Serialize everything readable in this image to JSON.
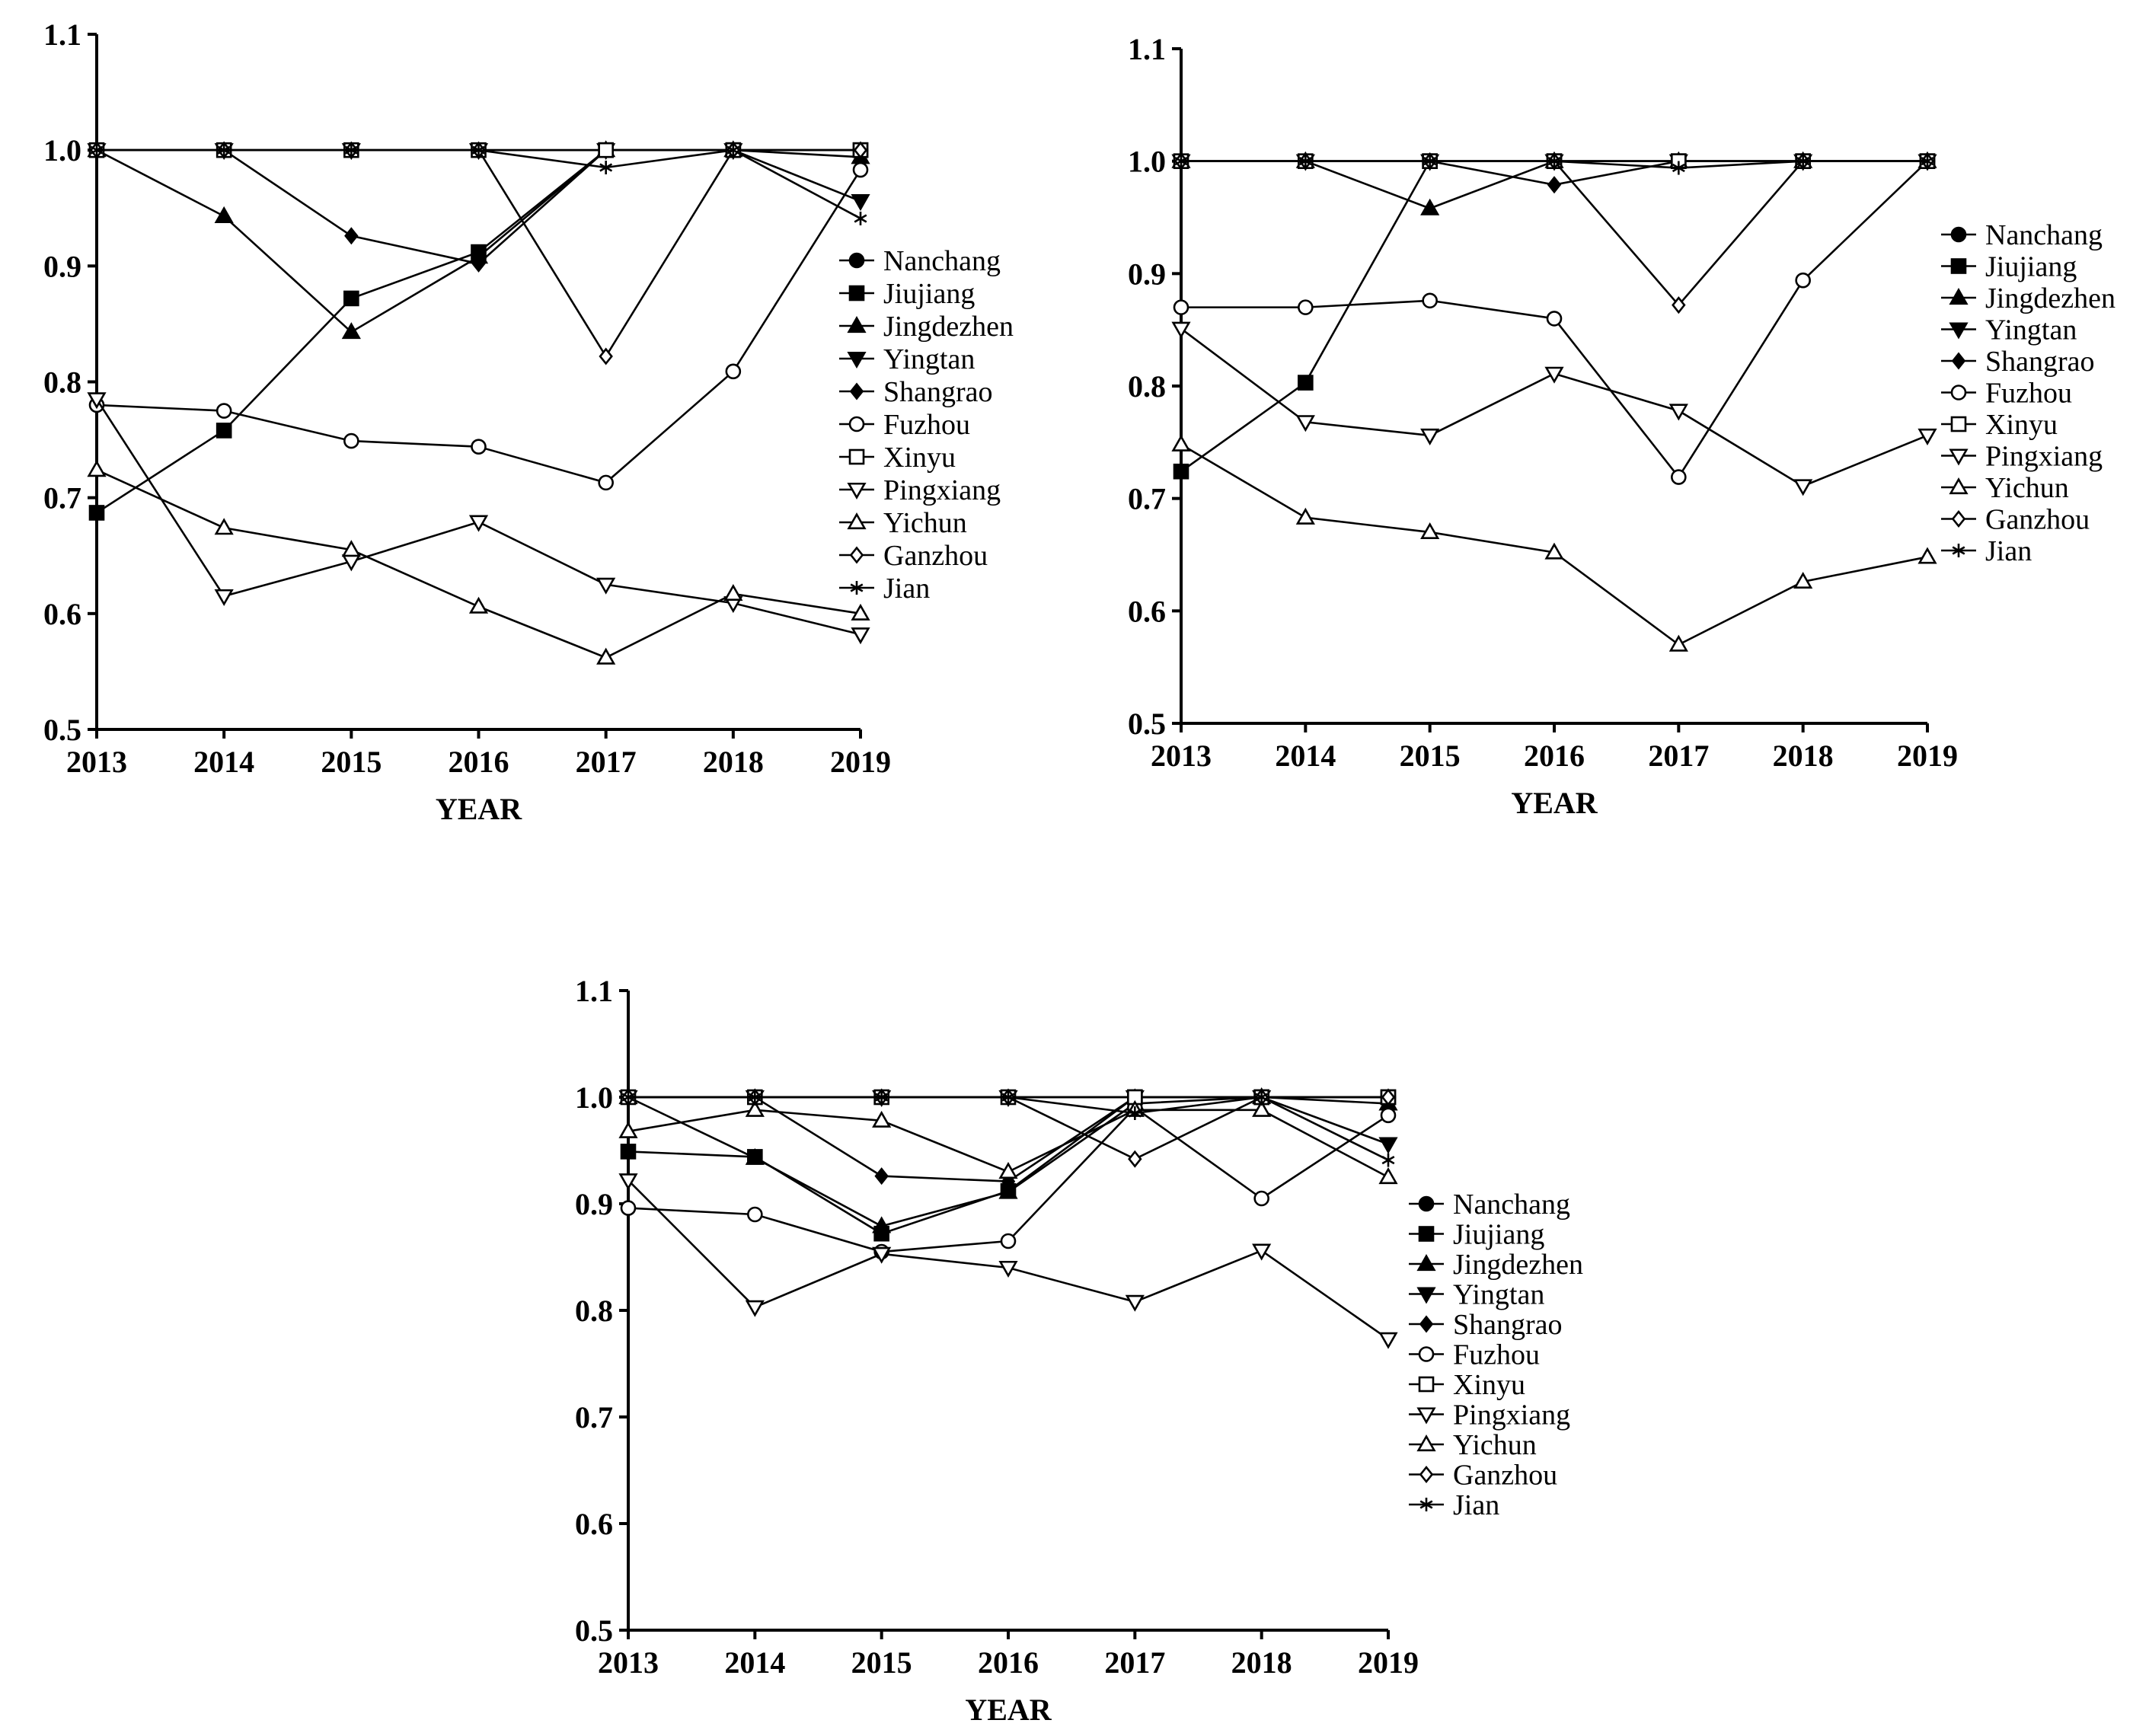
{
  "chart_data": [
    {
      "type": "line",
      "title": "",
      "xlabel": "YEAR",
      "ylabel": "",
      "x": [
        "2013",
        "2014",
        "2015",
        "2016",
        "2017",
        "2018",
        "2019"
      ],
      "ylim": [
        0.5,
        1.1
      ],
      "yticks": [
        "0.5",
        "0.6",
        "0.7",
        "0.8",
        "0.9",
        "1.0",
        "1.1"
      ],
      "grid": false,
      "legend_position": "right",
      "series": [
        {
          "name": "Nanchang",
          "marker": "circle-filled",
          "values": [
            1.0,
            1.0,
            1.0,
            1.0,
            1.0,
            1.0,
            1.0
          ]
        },
        {
          "name": "Jiujiang",
          "marker": "square-filled",
          "values": [
            0.687,
            0.758,
            0.872,
            0.912,
            1.0,
            1.0,
            1.0
          ]
        },
        {
          "name": "Jingdezhen",
          "marker": "triangle-up-filled",
          "values": [
            1.0,
            0.943,
            0.843,
            0.908,
            1.0,
            1.0,
            0.994
          ]
        },
        {
          "name": "Yingtan",
          "marker": "triangle-down-filled",
          "values": [
            1.0,
            1.0,
            1.0,
            1.0,
            1.0,
            1.0,
            0.956
          ]
        },
        {
          "name": "Shangrao",
          "marker": "diamond-filled",
          "values": [
            1.0,
            1.0,
            0.926,
            0.902,
            1.0,
            1.0,
            1.0
          ]
        },
        {
          "name": "Fuzhou",
          "marker": "circle-open",
          "values": [
            0.78,
            0.775,
            0.749,
            0.744,
            0.713,
            0.809,
            0.983
          ]
        },
        {
          "name": "Xinyu",
          "marker": "square-open",
          "values": [
            1.0,
            1.0,
            1.0,
            1.0,
            1.0,
            1.0,
            1.0
          ]
        },
        {
          "name": "Pingxiang",
          "marker": "triangle-down-open",
          "values": [
            0.785,
            0.615,
            0.645,
            0.679,
            0.625,
            0.609,
            0.582
          ]
        },
        {
          "name": "Yichun",
          "marker": "triangle-up-open",
          "values": [
            0.724,
            0.674,
            0.655,
            0.606,
            0.562,
            0.617,
            0.6
          ]
        },
        {
          "name": "Ganzhou",
          "marker": "diamond-open",
          "values": [
            1.0,
            1.0,
            1.0,
            1.0,
            0.822,
            1.0,
            1.0
          ]
        },
        {
          "name": "Jian",
          "marker": "asterisk",
          "values": [
            1.0,
            1.0,
            1.0,
            1.0,
            0.985,
            1.0,
            0.941
          ]
        }
      ]
    },
    {
      "type": "line",
      "title": "",
      "xlabel": "YEAR",
      "ylabel": "",
      "x": [
        "2013",
        "2014",
        "2015",
        "2016",
        "2017",
        "2018",
        "2019"
      ],
      "ylim": [
        0.5,
        1.1
      ],
      "yticks": [
        "0.5",
        "0.6",
        "0.7",
        "0.8",
        "0.9",
        "1.0",
        "1.1"
      ],
      "grid": false,
      "legend_position": "right",
      "series": [
        {
          "name": "Nanchang",
          "marker": "circle-filled",
          "values": [
            1.0,
            1.0,
            1.0,
            1.0,
            1.0,
            1.0,
            1.0
          ]
        },
        {
          "name": "Jiujiang",
          "marker": "square-filled",
          "values": [
            0.724,
            0.803,
            1.0,
            1.0,
            1.0,
            1.0,
            1.0
          ]
        },
        {
          "name": "Jingdezhen",
          "marker": "triangle-up-filled",
          "values": [
            1.0,
            1.0,
            0.958,
            1.0,
            1.0,
            1.0,
            1.0
          ]
        },
        {
          "name": "Yingtan",
          "marker": "triangle-down-filled",
          "values": [
            1.0,
            1.0,
            1.0,
            1.0,
            1.0,
            1.0,
            1.0
          ]
        },
        {
          "name": "Shangrao",
          "marker": "diamond-filled",
          "values": [
            1.0,
            1.0,
            1.0,
            0.979,
            1.0,
            1.0,
            1.0
          ]
        },
        {
          "name": "Fuzhou",
          "marker": "circle-open",
          "values": [
            0.87,
            0.87,
            0.876,
            0.86,
            0.719,
            0.894,
            1.0
          ]
        },
        {
          "name": "Xinyu",
          "marker": "square-open",
          "values": [
            1.0,
            1.0,
            1.0,
            1.0,
            1.0,
            1.0,
            1.0
          ]
        },
        {
          "name": "Pingxiang",
          "marker": "triangle-down-open",
          "values": [
            0.851,
            0.768,
            0.756,
            0.811,
            0.778,
            0.711,
            0.756
          ]
        },
        {
          "name": "Yichun",
          "marker": "triangle-up-open",
          "values": [
            0.748,
            0.683,
            0.67,
            0.652,
            0.57,
            0.626,
            0.648
          ]
        },
        {
          "name": "Ganzhou",
          "marker": "diamond-open",
          "values": [
            1.0,
            1.0,
            1.0,
            1.0,
            0.872,
            1.0,
            1.0
          ]
        },
        {
          "name": "Jian",
          "marker": "asterisk",
          "values": [
            1.0,
            1.0,
            1.0,
            1.0,
            0.994,
            1.0,
            1.0
          ]
        }
      ]
    },
    {
      "type": "line",
      "title": "",
      "xlabel": "YEAR",
      "ylabel": "",
      "x": [
        "2013",
        "2014",
        "2015",
        "2016",
        "2017",
        "2018",
        "2019"
      ],
      "ylim": [
        0.5,
        1.1
      ],
      "yticks": [
        "0.5",
        "0.6",
        "0.7",
        "0.8",
        "0.9",
        "1.0",
        "1.1"
      ],
      "grid": false,
      "legend_position": "right",
      "series": [
        {
          "name": "Nanchang",
          "marker": "circle-filled",
          "values": [
            1.0,
            1.0,
            1.0,
            1.0,
            1.0,
            1.0,
            1.0
          ]
        },
        {
          "name": "Jiujiang",
          "marker": "square-filled",
          "values": [
            0.949,
            0.944,
            0.872,
            0.912,
            1.0,
            1.0,
            1.0
          ]
        },
        {
          "name": "Jingdezhen",
          "marker": "triangle-up-filled",
          "values": [
            1.0,
            0.943,
            0.879,
            0.911,
            0.994,
            1.0,
            0.994
          ]
        },
        {
          "name": "Yingtan",
          "marker": "triangle-down-filled",
          "values": [
            1.0,
            1.0,
            1.0,
            1.0,
            1.0,
            1.0,
            0.956
          ]
        },
        {
          "name": "Shangrao",
          "marker": "diamond-filled",
          "values": [
            1.0,
            1.0,
            0.926,
            0.921,
            1.0,
            1.0,
            1.0
          ]
        },
        {
          "name": "Fuzhou",
          "marker": "circle-open",
          "values": [
            0.896,
            0.89,
            0.855,
            0.865,
            0.99,
            0.905,
            0.983
          ]
        },
        {
          "name": "Xinyu",
          "marker": "square-open",
          "values": [
            1.0,
            1.0,
            1.0,
            1.0,
            1.0,
            1.0,
            1.0
          ]
        },
        {
          "name": "Pingxiang",
          "marker": "triangle-down-open",
          "values": [
            0.922,
            0.803,
            0.853,
            0.84,
            0.808,
            0.856,
            0.773
          ]
        },
        {
          "name": "Yichun",
          "marker": "triangle-up-open",
          "values": [
            0.968,
            0.988,
            0.978,
            0.93,
            0.988,
            0.988,
            0.925
          ]
        },
        {
          "name": "Ganzhou",
          "marker": "diamond-open",
          "values": [
            1.0,
            1.0,
            1.0,
            1.0,
            0.942,
            1.0,
            1.0
          ]
        },
        {
          "name": "Jian",
          "marker": "asterisk",
          "values": [
            1.0,
            1.0,
            1.0,
            1.0,
            0.985,
            1.0,
            0.941
          ]
        }
      ]
    }
  ]
}
